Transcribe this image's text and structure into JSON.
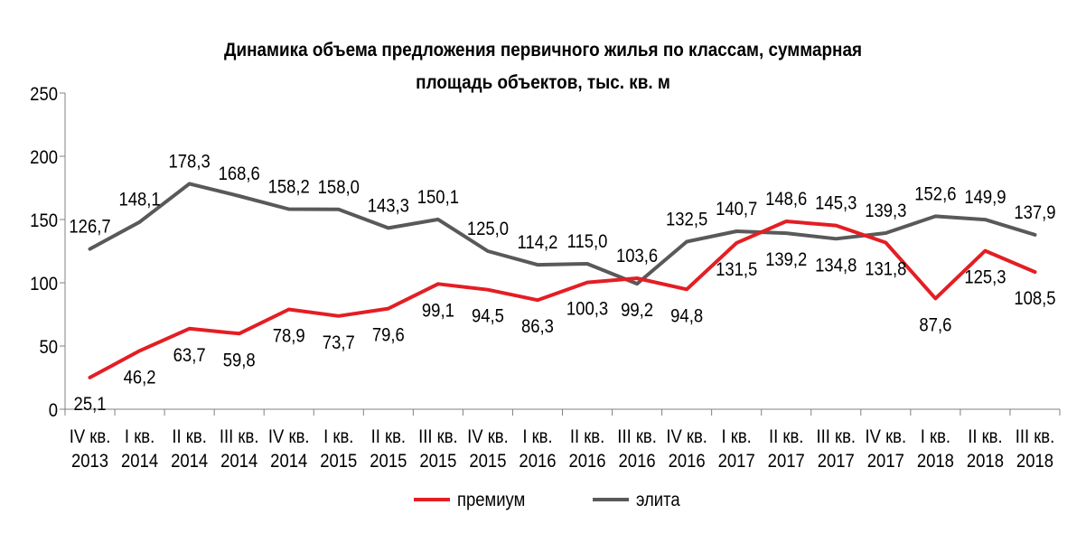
{
  "chart_data": {
    "type": "line",
    "title": [
      "Динамика объема предложения первичного жилья по классам, суммарная",
      "площадь  объектов, тыс. кв. м"
    ],
    "categories": [
      [
        "IV кв.",
        "2013"
      ],
      [
        "I кв.",
        "2014"
      ],
      [
        "II кв.",
        "2014"
      ],
      [
        "III кв.",
        "2014"
      ],
      [
        "IV кв.",
        "2014"
      ],
      [
        "I кв.",
        "2015"
      ],
      [
        "II кв.",
        "2015"
      ],
      [
        "III кв.",
        "2015"
      ],
      [
        "IV кв.",
        "2015"
      ],
      [
        "I кв.",
        "2016"
      ],
      [
        "II кв.",
        "2016"
      ],
      [
        "III кв.",
        "2016"
      ],
      [
        "IV кв.",
        "2016"
      ],
      [
        "I кв.",
        "2017"
      ],
      [
        "II кв.",
        "2017"
      ],
      [
        "III кв.",
        "2017"
      ],
      [
        "IV кв.",
        "2017"
      ],
      [
        "I кв.",
        "2018"
      ],
      [
        "II кв.",
        "2018"
      ],
      [
        "III кв.",
        "2018"
      ]
    ],
    "series": [
      {
        "name": "премиум",
        "color": "#e31e24",
        "values": [
          25.1,
          46.2,
          63.7,
          59.8,
          78.9,
          73.7,
          79.6,
          99.1,
          94.5,
          86.3,
          100.3,
          103.6,
          94.8,
          131.5,
          148.6,
          145.3,
          131.8,
          87.6,
          125.3,
          108.5
        ],
        "labels": [
          "25,1",
          "46,2",
          "63,7",
          "59,8",
          "78,9",
          "73,7",
          "79,6",
          "99,1",
          "94,5",
          "86,3",
          "100,3",
          "103,6",
          "94,8",
          "131,5",
          "148,6",
          "145,3",
          "131,8",
          "87,6",
          "125,3",
          "108,5"
        ]
      },
      {
        "name": "элита",
        "color": "#595959",
        "values": [
          126.7,
          148.1,
          178.3,
          168.6,
          158.2,
          158.0,
          143.3,
          150.1,
          125.0,
          114.2,
          115.0,
          99.2,
          132.5,
          140.7,
          139.2,
          134.8,
          139.3,
          152.6,
          149.9,
          137.9
        ],
        "labels": [
          "126,7",
          "148,1",
          "178,3",
          "168,6",
          "158,2",
          "158,0",
          "143,3",
          "150,1",
          "125,0",
          "114,2",
          "115,0",
          "99,2",
          "132,5",
          "140,7",
          "139,2",
          "134,8",
          "139,3",
          "152,6",
          "149,9",
          "137,9"
        ]
      }
    ],
    "y_ticks": [
      "0",
      "50",
      "100",
      "150",
      "200",
      "250"
    ],
    "ylim": [
      0,
      250
    ],
    "grid": false,
    "legend_position": "bottom"
  }
}
